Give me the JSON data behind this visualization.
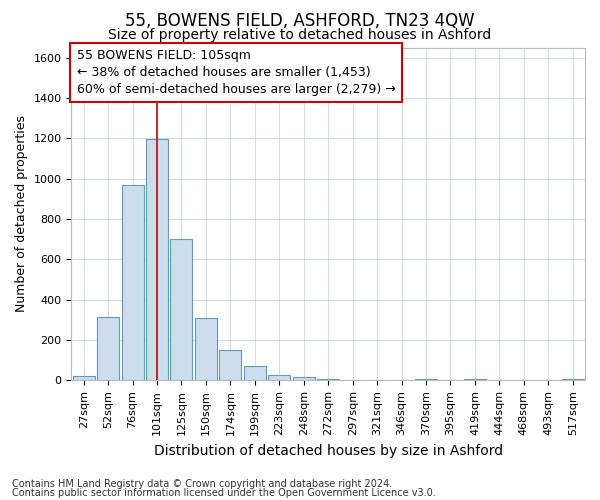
{
  "title": "55, BOWENS FIELD, ASHFORD, TN23 4QW",
  "subtitle": "Size of property relative to detached houses in Ashford",
  "xlabel": "Distribution of detached houses by size in Ashford",
  "ylabel": "Number of detached properties",
  "footnote1": "Contains HM Land Registry data © Crown copyright and database right 2024.",
  "footnote2": "Contains public sector information licensed under the Open Government Licence v3.0.",
  "bar_labels": [
    "27sqm",
    "52sqm",
    "76sqm",
    "101sqm",
    "125sqm",
    "150sqm",
    "174sqm",
    "199sqm",
    "223sqm",
    "248sqm",
    "272sqm",
    "297sqm",
    "321sqm",
    "346sqm",
    "370sqm",
    "395sqm",
    "419sqm",
    "444sqm",
    "468sqm",
    "493sqm",
    "517sqm"
  ],
  "bar_values": [
    22,
    315,
    970,
    1195,
    700,
    310,
    150,
    72,
    25,
    15,
    5,
    0,
    0,
    0,
    5,
    0,
    5,
    0,
    0,
    0,
    5
  ],
  "bar_color": "#ccdded",
  "bar_edge_color": "#6699bb",
  "vline_color": "#cc0000",
  "vline_x": 3.0,
  "annotation_text": "55 BOWENS FIELD: 105sqm\n← 38% of detached houses are smaller (1,453)\n60% of semi-detached houses are larger (2,279) →",
  "annotation_box_facecolor": "#ffffff",
  "annotation_box_edgecolor": "#cc0000",
  "ylim": [
    0,
    1650
  ],
  "yticks": [
    0,
    200,
    400,
    600,
    800,
    1000,
    1200,
    1400,
    1600
  ],
  "grid_color": "#d0dde8",
  "background_color": "#ffffff",
  "title_fontsize": 12,
  "subtitle_fontsize": 10,
  "ylabel_fontsize": 9,
  "xlabel_fontsize": 10,
  "tick_fontsize": 8,
  "annot_fontsize": 9,
  "footnote_fontsize": 7
}
